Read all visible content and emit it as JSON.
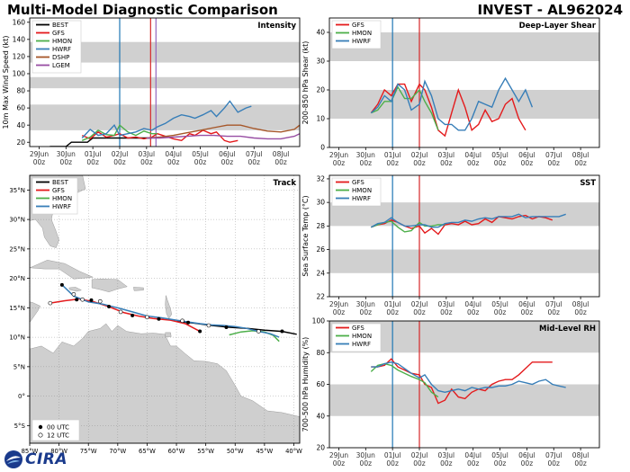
{
  "header": {
    "left_title": "Multi-Model Diagnostic Comparison",
    "right_title": "INVEST - AL962024"
  },
  "logo": {
    "text": "CIRA"
  },
  "colors": {
    "BEST": "#000000",
    "GFS": "#e41a1c",
    "HMON": "#4daf4a",
    "HWRF": "#377eb8",
    "DSHP": "#a65628",
    "LGEM": "#984ea3",
    "band": "#d0d0d0",
    "land": "#cfcfcf",
    "ocean": "#ffffff",
    "vline_blue": "#1f77b4",
    "vline_red": "#d62728",
    "vline_purple": "#9467bd"
  },
  "time_axis": {
    "ticks": [
      0,
      1,
      2,
      3,
      4,
      5,
      6,
      7,
      8,
      9
    ],
    "labels_top": [
      "29Jun",
      "30Jun",
      "01Jul",
      "02Jul",
      "03Jul",
      "04Jul",
      "05Jul",
      "06Jul",
      "07Jul",
      "08Jul"
    ],
    "labels_bottom": [
      "00z",
      "00z",
      "00z",
      "00z",
      "00z",
      "00z",
      "00z",
      "00z",
      "00z",
      "00z"
    ],
    "range": [
      -0.35,
      9.7
    ]
  },
  "chart_data": [
    {
      "type": "line",
      "title": "Intensity",
      "ylabel": "10m Max Wind Speed (kt)",
      "ylim": [
        15,
        165
      ],
      "yticks": [
        20,
        40,
        60,
        80,
        100,
        120,
        140,
        160
      ],
      "bands": [
        [
          34,
          64
        ],
        [
          83,
          96
        ],
        [
          113,
          137
        ]
      ],
      "vlines": [
        {
          "x": 3.0,
          "color": "blue"
        },
        {
          "x": 4.15,
          "color": "red"
        },
        {
          "x": 4.35,
          "color": "purple"
        }
      ],
      "legend": [
        "BEST",
        "GFS",
        "HMON",
        "HWRF",
        "DSHP",
        "LGEM"
      ],
      "series": [
        {
          "name": "BEST",
          "x": [
            0.4,
            0.6,
            0.8,
            1.0,
            1.2,
            1.4,
            1.6,
            1.8,
            2.0,
            2.2,
            2.4,
            2.6,
            2.8,
            3.0,
            3.2,
            3.4,
            3.6,
            3.8,
            4.0,
            4.2
          ],
          "y": [
            15,
            15,
            15,
            15,
            20,
            20,
            20,
            20,
            25,
            25,
            25,
            25,
            25,
            25,
            25,
            25,
            25,
            25,
            25,
            25
          ]
        },
        {
          "name": "GFS",
          "x": [
            1.6,
            1.9,
            2.2,
            2.5,
            2.8,
            3.0,
            3.3,
            3.6,
            3.9,
            4.2,
            4.4,
            4.7,
            5.0,
            5.3,
            5.6,
            5.8,
            6.1,
            6.4,
            6.6,
            6.9,
            7.1,
            7.4
          ],
          "y": [
            28,
            24,
            32,
            26,
            28,
            30,
            25,
            26,
            24,
            26,
            30,
            27,
            24,
            22,
            30,
            28,
            34,
            30,
            32,
            22,
            20,
            22
          ]
        },
        {
          "name": "HMON",
          "x": [
            1.6,
            1.9,
            2.2,
            2.5,
            2.8,
            3.0,
            3.3,
            3.6,
            3.9,
            4.2,
            4.4
          ],
          "y": [
            22,
            26,
            34,
            29,
            28,
            40,
            32,
            28,
            33,
            30,
            30
          ]
        },
        {
          "name": "HWRF",
          "x": [
            1.6,
            1.9,
            2.2,
            2.5,
            2.8,
            3.0,
            3.3,
            3.6,
            3.9,
            4.2,
            4.4,
            4.7,
            5.0,
            5.3,
            5.6,
            5.8,
            6.1,
            6.4,
            6.6,
            6.9,
            7.1,
            7.4,
            7.7,
            7.9
          ],
          "y": [
            25,
            35,
            28,
            30,
            40,
            28,
            30,
            32,
            36,
            34,
            38,
            42,
            48,
            52,
            50,
            48,
            52,
            57,
            50,
            60,
            68,
            55,
            60,
            62
          ]
        },
        {
          "name": "DSHP",
          "x": [
            4.0,
            4.5,
            5.0,
            5.5,
            6.0,
            6.5,
            7.0,
            7.5,
            8.0,
            8.5,
            9.0,
            9.5,
            9.7
          ],
          "y": [
            25,
            26,
            28,
            31,
            34,
            37,
            40,
            40,
            36,
            33,
            32,
            35,
            40
          ]
        },
        {
          "name": "LGEM",
          "x": [
            4.0,
            4.5,
            5.0,
            5.5,
            6.0,
            6.5,
            7.0,
            7.5,
            8.0,
            8.5,
            9.0,
            9.5,
            9.7
          ],
          "y": [
            25,
            25,
            26,
            27,
            28,
            28,
            27,
            27,
            25,
            24,
            24,
            27,
            30
          ]
        }
      ]
    },
    {
      "type": "line",
      "title": "Deep-Layer Shear",
      "ylabel": "200-850 hPa Shear (kt)",
      "ylim": [
        0,
        45
      ],
      "yticks": [
        0,
        10,
        20,
        30,
        40
      ],
      "bands": [
        [
          10,
          20
        ],
        [
          30,
          40
        ]
      ],
      "vlines": [
        {
          "x": 2.0,
          "color": "blue"
        },
        {
          "x": 3.0,
          "color": "red"
        }
      ],
      "legend": [
        "GFS",
        "HMON",
        "HWRF"
      ],
      "series": [
        {
          "name": "GFS",
          "x": [
            1.2,
            1.45,
            1.7,
            1.95,
            2.2,
            2.45,
            2.7,
            3.0,
            3.2,
            3.45,
            3.7,
            3.95,
            4.2,
            4.45,
            4.7,
            4.95,
            5.2,
            5.45,
            5.7,
            5.95,
            6.2,
            6.45,
            6.7,
            6.95
          ],
          "y": [
            12,
            15,
            20,
            18,
            22,
            22,
            16,
            22,
            20,
            14,
            6,
            4,
            12,
            20,
            14,
            6,
            8,
            13,
            9,
            10,
            15,
            17,
            10,
            6
          ]
        },
        {
          "name": "HMON",
          "x": [
            1.2,
            1.45,
            1.7,
            1.95,
            2.2,
            2.45,
            2.7,
            3.0,
            3.2,
            3.45,
            3.7
          ],
          "y": [
            12,
            13,
            16,
            16,
            21,
            17,
            17,
            20,
            16,
            12,
            6
          ]
        },
        {
          "name": "HWRF",
          "x": [
            1.2,
            1.45,
            1.7,
            1.95,
            2.2,
            2.45,
            2.7,
            3.0,
            3.2,
            3.45,
            3.7,
            3.95,
            4.2,
            4.45,
            4.7,
            4.95,
            5.2,
            5.45,
            5.7,
            5.95,
            6.2,
            6.45,
            6.7,
            6.95,
            7.2
          ],
          "y": [
            12,
            14,
            18,
            16,
            22,
            20,
            13,
            15,
            23,
            18,
            10,
            8,
            8,
            6,
            6,
            10,
            16,
            15,
            14,
            20,
            24,
            20,
            16,
            20,
            14
          ]
        }
      ]
    },
    {
      "type": "line",
      "title": "SST",
      "ylabel": "Sea Surface Temp (°C)",
      "ylim": [
        22,
        32.3
      ],
      "yticks": [
        22,
        24,
        26,
        28,
        30,
        32
      ],
      "bands": [
        [
          24,
          26
        ],
        [
          28,
          30
        ]
      ],
      "vlines": [
        {
          "x": 2.0,
          "color": "blue"
        },
        {
          "x": 3.0,
          "color": "red"
        }
      ],
      "legend": [
        "GFS",
        "HMON",
        "HWRF"
      ],
      "series": [
        {
          "name": "GFS",
          "x": [
            1.2,
            1.45,
            1.7,
            1.95,
            2.2,
            2.45,
            2.7,
            3.0,
            3.2,
            3.45,
            3.7,
            3.95,
            4.2,
            4.45,
            4.7,
            4.95,
            5.2,
            5.45,
            5.7,
            5.95,
            6.2,
            6.45,
            6.7,
            6.95,
            7.2,
            7.45,
            7.7,
            7.95
          ],
          "y": [
            27.9,
            28.1,
            28.2,
            28.5,
            28.3,
            28.0,
            27.8,
            28.0,
            27.4,
            27.8,
            27.3,
            28.1,
            28.2,
            28.1,
            28.4,
            28.1,
            28.2,
            28.6,
            28.3,
            28.8,
            28.7,
            28.6,
            28.8,
            28.9,
            28.6,
            28.8,
            28.7,
            28.5
          ]
        },
        {
          "name": "HMON",
          "x": [
            1.2,
            1.45,
            1.7,
            1.95,
            2.2,
            2.45,
            2.7,
            3.0,
            3.2,
            3.45,
            3.7,
            3.95
          ],
          "y": [
            27.9,
            28.1,
            28.3,
            28.4,
            27.9,
            27.5,
            27.6,
            28.3,
            28.0,
            28.0,
            28.1,
            28.1
          ]
        },
        {
          "name": "HWRF",
          "x": [
            1.2,
            1.45,
            1.7,
            1.95,
            2.2,
            2.45,
            2.7,
            3.0,
            3.2,
            3.45,
            3.7,
            3.95,
            4.2,
            4.45,
            4.7,
            4.95,
            5.2,
            5.45,
            5.7,
            5.95,
            6.2,
            6.45,
            6.7,
            6.95,
            7.2,
            7.45,
            7.7,
            7.95,
            8.2,
            8.45
          ],
          "y": [
            27.9,
            28.2,
            28.3,
            28.7,
            28.3,
            28.0,
            28.0,
            28.1,
            28.1,
            27.9,
            27.9,
            28.2,
            28.3,
            28.3,
            28.5,
            28.4,
            28.6,
            28.7,
            28.6,
            28.8,
            28.8,
            28.8,
            29.0,
            28.7,
            28.8,
            28.8,
            28.8,
            28.8,
            28.8,
            29.0
          ]
        }
      ]
    },
    {
      "type": "line",
      "title": "Mid-Level RH",
      "ylabel": "700-500 hPa Humidity (%)",
      "ylim": [
        20,
        100
      ],
      "yticks": [
        20,
        40,
        60,
        80,
        100
      ],
      "bands": [
        [
          40,
          60
        ],
        [
          80,
          100
        ]
      ],
      "vlines": [
        {
          "x": 2.0,
          "color": "blue"
        },
        {
          "x": 3.0,
          "color": "red"
        }
      ],
      "legend": [
        "GFS",
        "HMON",
        "HWRF"
      ],
      "series": [
        {
          "name": "GFS",
          "x": [
            1.2,
            1.45,
            1.7,
            1.95,
            2.2,
            2.45,
            2.7,
            3.0,
            3.2,
            3.45,
            3.7,
            3.95,
            4.2,
            4.45,
            4.7,
            4.95,
            5.2,
            5.45,
            5.7,
            5.95,
            6.2,
            6.45,
            6.7,
            6.95,
            7.2,
            7.45,
            7.7,
            7.95
          ],
          "y": [
            71,
            71,
            72,
            76,
            71,
            69,
            67,
            66,
            60,
            58,
            48,
            50,
            57,
            52,
            51,
            55,
            57,
            56,
            60,
            62,
            63,
            63,
            66,
            70,
            74,
            74,
            74,
            74
          ]
        },
        {
          "name": "HMON",
          "x": [
            1.2,
            1.45,
            1.7,
            1.95,
            2.2,
            2.45,
            2.7,
            3.0,
            3.2,
            3.45,
            3.7
          ],
          "y": [
            68,
            72,
            73,
            72,
            69,
            67,
            65,
            63,
            61,
            55,
            52
          ]
        },
        {
          "name": "HWRF",
          "x": [
            1.2,
            1.45,
            1.7,
            1.95,
            2.2,
            2.45,
            2.7,
            3.0,
            3.2,
            3.45,
            3.7,
            3.95,
            4.2,
            4.45,
            4.7,
            4.95,
            5.2,
            5.45,
            5.7,
            5.95,
            6.2,
            6.45,
            6.7,
            6.95,
            7.2,
            7.45,
            7.7,
            7.95,
            8.2,
            8.45
          ],
          "y": [
            71,
            71,
            73,
            74,
            73,
            70,
            67,
            64,
            66,
            60,
            56,
            55,
            56,
            57,
            56,
            58,
            57,
            58,
            58,
            59,
            59,
            60,
            62,
            61,
            60,
            62,
            63,
            60,
            59,
            58
          ]
        }
      ]
    },
    {
      "type": "map",
      "title": "Track",
      "lon_range": [
        -85,
        -39
      ],
      "lat_range": [
        -8,
        37.5
      ],
      "xticks": [
        -85,
        -80,
        -75,
        -70,
        -65,
        -60,
        -55,
        -50,
        -45,
        -40
      ],
      "xtick_labels": [
        "85°W",
        "80°W",
        "75°W",
        "70°W",
        "65°W",
        "60°W",
        "55°W",
        "50°W",
        "45°W",
        "40°W"
      ],
      "yticks": [
        -5,
        0,
        5,
        10,
        15,
        20,
        25,
        30,
        35
      ],
      "ytick_labels": [
        "5°S",
        "0°",
        "5°N",
        "10°N",
        "15°N",
        "20°N",
        "25°N",
        "30°N",
        "35°N"
      ],
      "legend": [
        "BEST",
        "GFS",
        "HMON",
        "HWRF"
      ],
      "marker_legend": [
        "00 UTC",
        "12 UTC"
      ],
      "series": [
        {
          "name": "BEST",
          "lon": [
            -39.5,
            -42,
            -45,
            -48,
            -51,
            -54,
            -57,
            -60
          ],
          "lat": [
            10.5,
            11.0,
            11.2,
            11.5,
            11.7,
            12.0,
            12.4,
            12.7
          ]
        },
        {
          "name": "GFS",
          "lon": [
            -56,
            -58.5,
            -61,
            -64,
            -66.5,
            -69,
            -71.5,
            -74,
            -76.5,
            -79,
            -81.5
          ],
          "lat": [
            11.0,
            12.3,
            12.9,
            13.2,
            13.6,
            14.2,
            15.2,
            16.0,
            16.5,
            16.2,
            15.8
          ]
        },
        {
          "name": "HMON",
          "lon": [
            -51,
            -49,
            -47,
            -45,
            -43.5,
            -42.5
          ],
          "lat": [
            10.4,
            10.9,
            11.1,
            10.9,
            10.3,
            9.3
          ]
        },
        {
          "name": "HWRF",
          "lon": [
            -42.5,
            -44,
            -46,
            -48,
            -50,
            -52,
            -54,
            -56,
            -58,
            -60,
            -62.5,
            -65,
            -67.5,
            -70,
            -72.5,
            -75,
            -77.5,
            -79.5
          ],
          "lat": [
            10.0,
            10.6,
            11.0,
            11.5,
            11.8,
            12.0,
            12.1,
            12.3,
            12.6,
            12.9,
            13.3,
            13.6,
            14.3,
            15.0,
            15.6,
            16.0,
            17.0,
            18.9
          ]
        }
      ],
      "markers_00utc": [
        {
          "lon": -42,
          "lat": 11.0
        },
        {
          "lon": -51.5,
          "lat": 11.7
        },
        {
          "lon": -58,
          "lat": 12.5
        },
        {
          "lon": -63,
          "lat": 13.1
        },
        {
          "lon": -67.5,
          "lat": 13.7
        },
        {
          "lon": -71.5,
          "lat": 15.2
        },
        {
          "lon": -74.5,
          "lat": 16.3
        },
        {
          "lon": -77,
          "lat": 16.4
        },
        {
          "lon": -79.5,
          "lat": 18.9
        },
        {
          "lon": -56,
          "lat": 11.0
        }
      ],
      "markers_12utc": [
        {
          "lon": -46,
          "lat": 11.0
        },
        {
          "lon": -54.5,
          "lat": 12.0
        },
        {
          "lon": -59,
          "lat": 12.8
        },
        {
          "lon": -65,
          "lat": 13.4
        },
        {
          "lon": -69.5,
          "lat": 14.3
        },
        {
          "lon": -73,
          "lat": 16.1
        },
        {
          "lon": -76,
          "lat": 16.4
        },
        {
          "lon": -81.5,
          "lat": 15.8
        },
        {
          "lon": -77.5,
          "lat": 17.3
        }
      ]
    }
  ]
}
